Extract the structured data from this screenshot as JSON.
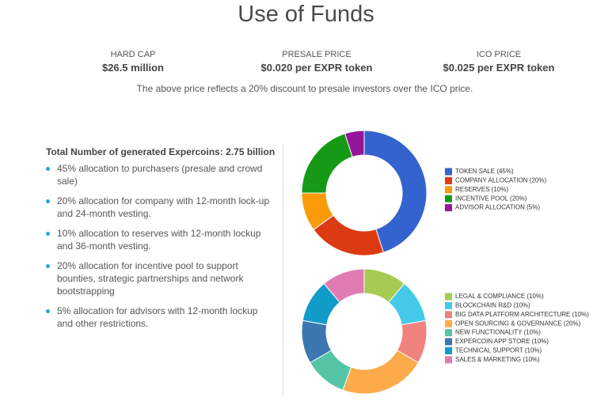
{
  "title": "Use of Funds",
  "stats": [
    {
      "label": "HARD CAP",
      "value": "$26.5 million"
    },
    {
      "label": "PRESALE PRICE",
      "value": "$0.020 per EXPR token"
    },
    {
      "label": "ICO PRICE",
      "value": "$0.025 per EXPR token"
    }
  ],
  "note": "The above price reflects a 20% discount to presale investors over the ICO price.",
  "summary": {
    "heading": "Total Number of generated Expercoins: 2.75 billion",
    "bullets": [
      "45% allocation to purchasers (presale and crowd sale)",
      "20% allocation for company with 12-month lock-up and 24-month vesting.",
      "10% allocation to reserves with 12-month lockup and 36-month vesting.",
      "20% allocation for incentive pool to support bounties, strategic partnerships and network bootstrapping",
      "5% allocation for advisors with 12-month lockup and other restrictions."
    ]
  },
  "chart_data": [
    {
      "type": "pie",
      "donut": true,
      "categories": [
        "TOKEN SALE (45%)",
        "COMPANY ALLOCATION (20%)",
        "RESERVES (10%)",
        "INCENTIVE POOL (20%)",
        "ADVISOR ALLOCATION (5%)"
      ],
      "values": [
        45,
        20,
        10,
        20,
        5
      ],
      "colors": [
        "#3463d0",
        "#dc3a12",
        "#fb9a09",
        "#169a16",
        "#95169b"
      ]
    },
    {
      "type": "pie",
      "donut": true,
      "categories": [
        "LEGAL & COMPLIANCE (10%)",
        "BLOCKCHAIN R&D (10%)",
        "BIG DATA PLATFORM ARCHITECTURE (10%)",
        "OPEN SOURCING & GOVERNANCE (20%)",
        "NEW FUNCTIONALITY (10%)",
        "EXPERCOIN APP STORE (10%)",
        "TECHNICAL SUPPORT (10%)",
        "SALES & MARKETING (10%)"
      ],
      "values": [
        10,
        10,
        10,
        20,
        10,
        10,
        10,
        10
      ],
      "colors": [
        "#a6cb52",
        "#45c9e9",
        "#f0837e",
        "#fdaa4a",
        "#55c5a6",
        "#3c77b2",
        "#109bc9",
        "#e17bb4"
      ]
    }
  ]
}
